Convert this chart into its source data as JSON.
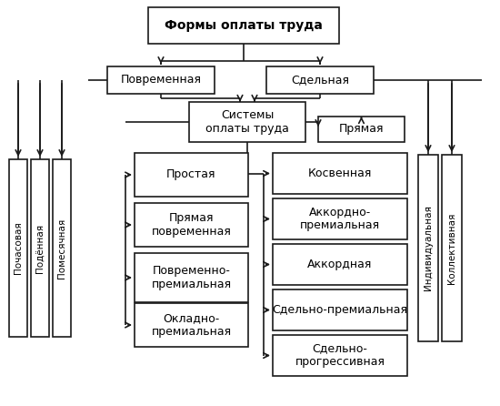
{
  "bg": "#ffffff",
  "lw": 1.2,
  "title": "Формы оплаты труда",
  "pov": "Повременная",
  "sdel": "Сдельная",
  "sys": "Системы\nоплаты труда",
  "pryam": "Прямая",
  "lcol": [
    "Простая",
    "Прямая\nповременная",
    "Повременно-\nпремиальная",
    "Окладно-\nпремиальная"
  ],
  "rcol": [
    "Косвенная",
    "Аккордно-\nпремиальная",
    "Аккордная",
    "Сдельно-премиальная",
    "Сдельно-\nпрогрессивная"
  ],
  "vl": [
    "Почасовая",
    "Подённая",
    "Помесячная"
  ],
  "vr": [
    "Индивидуальная",
    "Коллективная"
  ]
}
